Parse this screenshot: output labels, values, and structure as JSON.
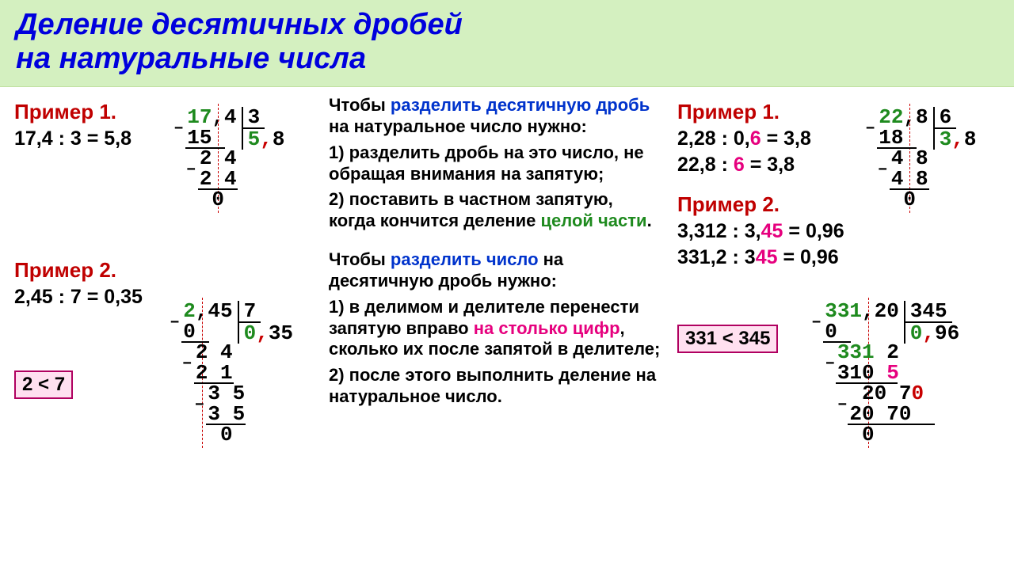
{
  "colors": {
    "header_bg": "#d4f0c0",
    "title": "#0000dd",
    "red": "#c80000",
    "green": "#1e8a1e",
    "pink": "#e6007e",
    "blue": "#0033cc",
    "pinkbox_bg": "#ffe0f0",
    "pinkbox_border": "#b00060"
  },
  "typography": {
    "title_fontsize": 38,
    "body_fontsize": 22,
    "equation_fontsize": 25,
    "longdiv_fontsize": 26,
    "font_family": "Arial"
  },
  "title_line1": "Деление десятичных дробей",
  "title_line2": "на натуральные числа",
  "left": {
    "ex1_label": "Пример 1.",
    "ex1_eq": "17,4 : 3 = 5,8",
    "ex2_label": "Пример 2.",
    "ex2_eq": "2,45 : 7 = 0,35",
    "box1": "2 < 7",
    "ld1": {
      "dividend_int": "17",
      "dividend_frac": ",4",
      "divisor": "3",
      "quotient_int": "5",
      "quotient_frac": ",8",
      "steps": [
        {
          "minus": true,
          "sub": "15"
        },
        {
          "carry": "2 4"
        },
        {
          "minus": true,
          "sub": "2 4"
        },
        {
          "rem": "0"
        }
      ]
    },
    "ld2": {
      "dividend_int": "2",
      "dividend_frac": ",45",
      "divisor": "7",
      "quotient_int": "0",
      "quotient_frac": ",35",
      "steps": [
        {
          "minus": true,
          "sub": "0"
        },
        {
          "carry": "2 4"
        },
        {
          "minus": true,
          "sub": "2 1"
        },
        {
          "carry": "3 5"
        },
        {
          "minus": true,
          "sub": "3 5"
        },
        {
          "rem": "0"
        }
      ]
    }
  },
  "middle": {
    "rule1": {
      "intro_pre": "Чтобы ",
      "intro_hl": "разделить десятичную дробь",
      "intro_post": " на натуральное число нужно:",
      "p1": "1) разделить дробь на это число, не обращая внимания на запятую;",
      "p2_pre": "2) поставить в частном запятую, когда кончится деление ",
      "p2_hl": "целой части",
      "p2_post": "."
    },
    "rule2": {
      "intro_pre": "Чтобы ",
      "intro_hl": "разделить число",
      "intro_post": " на десятичную дробь нужно:",
      "p1_pre": "1) в делимом и делителе перенести запятую вправо ",
      "p1_hl": "на столько цифр",
      "p1_post": ", сколько их после запятой в делителе;",
      "p2": "2) после этого выполнить деление на натуральное число."
    }
  },
  "right": {
    "ex1_label": "Пример 1.",
    "ex1_eq1_a": "2,28 : 0,",
    "ex1_eq1_b": "6",
    "ex1_eq1_c": " = 3,8",
    "ex1_eq2_a": "22,8 : ",
    "ex1_eq2_b": "6",
    "ex1_eq2_c": " = 3,8",
    "ex2_label": "Пример 2.",
    "ex2_eq1_a": "3,312 : 3,",
    "ex2_eq1_b": "45",
    "ex2_eq1_c": " = 0,96",
    "ex2_eq2_a": "331,2 : 3",
    "ex2_eq2_b": "45",
    "ex2_eq2_c": " = 0,96",
    "box2": "331 < 345",
    "ld1": {
      "dividend_int": "22",
      "dividend_frac": ",8",
      "divisor": "6",
      "quotient_int": "3",
      "quotient_frac": ",8",
      "steps": [
        {
          "minus": true,
          "sub": "18"
        },
        {
          "carry": "4 8"
        },
        {
          "minus": true,
          "sub": "4 8"
        },
        {
          "rem": "0"
        }
      ]
    },
    "ld2": {
      "dividend_int": "331",
      "dividend_frac": ",20",
      "divisor": "345",
      "quotient_int": "0",
      "quotient_frac": ",96",
      "steps": [
        {
          "minus": true,
          "sub": "0"
        },
        {
          "carry_green": "331",
          "carry_black": "2"
        },
        {
          "minus": true,
          "sub_black": "310",
          "sub_pink": "5"
        },
        {
          "carry_black": "20 7",
          "carry_red": "0"
        },
        {
          "minus": true,
          "sub_black": "20 70"
        },
        {
          "rem": "0"
        }
      ]
    }
  }
}
